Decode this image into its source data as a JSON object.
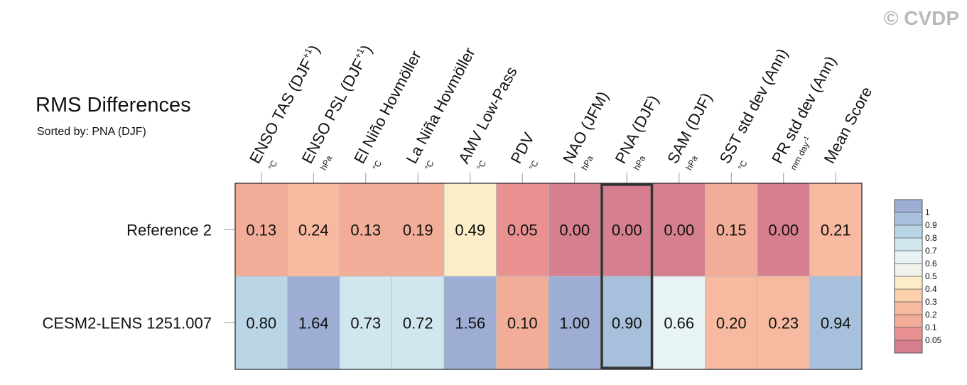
{
  "watermark": "© CVDP",
  "chart_data": {
    "type": "heatmap",
    "title": "RMS Differences",
    "subtitle": "Sorted by: PNA (DJF)",
    "columns": [
      {
        "label": "ENSO TAS (DJF",
        "sup": "+1",
        "close": ")",
        "unit": "°C"
      },
      {
        "label": "ENSO PSL (DJF",
        "sup": "+1",
        "close": ")",
        "unit": "hPa"
      },
      {
        "label": "El Niño Hovmöller",
        "unit": "°C"
      },
      {
        "label": "La Niña Hovmöller",
        "unit": "°C"
      },
      {
        "label": "AMV Low-Pass",
        "unit": "°C"
      },
      {
        "label": "PDV",
        "unit": "°C"
      },
      {
        "label": "NAO (JFM)",
        "unit": "hPa"
      },
      {
        "label": "PNA (DJF)",
        "unit": "hPa"
      },
      {
        "label": "SAM (DJF)",
        "unit": "hPa"
      },
      {
        "label": "SST std dev (Ann)",
        "unit": "°C"
      },
      {
        "label": "PR std dev (Ann)",
        "unit": "mm day",
        "unit_sup": "-1"
      },
      {
        "label": "Mean Score",
        "unit": ""
      }
    ],
    "rows": [
      {
        "name": "Reference 2",
        "values": [
          0.13,
          0.24,
          0.13,
          0.19,
          0.49,
          0.05,
          0.0,
          0.0,
          0.0,
          0.15,
          0.0,
          0.21
        ]
      },
      {
        "name": "CESM2-LENS 1251.007",
        "values": [
          0.8,
          1.64,
          0.73,
          0.72,
          1.56,
          0.1,
          1.0,
          0.9,
          0.66,
          0.2,
          0.23,
          0.94
        ]
      }
    ],
    "highlighted_column": "PNA (DJF)",
    "value_format": "2 decimals",
    "legend": {
      "placement": "right",
      "labels": [
        "1",
        "0.9",
        "0.8",
        "0.7",
        "0.6",
        "0.5",
        "0.4",
        "0.3",
        "0.2",
        "0.1",
        "0.05"
      ],
      "colors": [
        "#9dadd3",
        "#a7c1dd",
        "#bad6e6",
        "#d1e7ef",
        "#e8f3f5",
        "#f0f3ec",
        "#fcedc9",
        "#fbd0aa",
        "#f7b99f",
        "#f1ad98",
        "#e89190",
        "#d67f8e"
      ]
    }
  }
}
